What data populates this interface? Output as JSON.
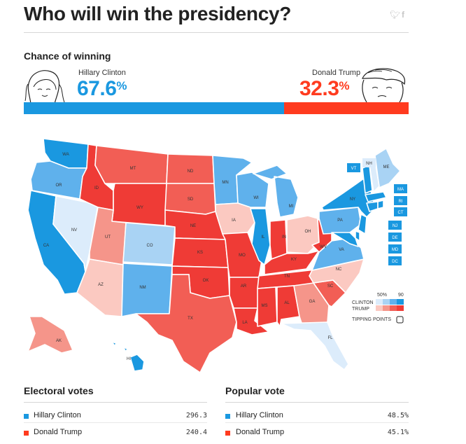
{
  "title": "Who will win the presidency?",
  "social_icons": [
    "twitter-icon",
    "facebook-icon"
  ],
  "chance": {
    "label": "Chance of winning",
    "clinton": {
      "name": "Hillary Clinton",
      "value": "67.6",
      "sign": "%",
      "color": "#1a98e0",
      "share": 0.676
    },
    "trump": {
      "name": "Donald Trump",
      "value": "32.3",
      "sign": "%",
      "color": "#ff3b1f",
      "share": 0.323
    }
  },
  "colors": {
    "clinton_strong": "#1a98e0",
    "clinton_likely": "#5fb1ec",
    "clinton_lean": "#a9d3f4",
    "clinton_tilt": "#dcecfb",
    "trump_strong": "#ef3b36",
    "trump_likely": "#f25e55",
    "trump_lean": "#f5958a",
    "trump_tilt": "#fbc9c1"
  },
  "map": {
    "states": [
      {
        "abbr": "WA",
        "rating": "clinton_strong"
      },
      {
        "abbr": "OR",
        "rating": "clinton_likely"
      },
      {
        "abbr": "CA",
        "rating": "clinton_strong"
      },
      {
        "abbr": "NV",
        "rating": "clinton_tilt"
      },
      {
        "abbr": "ID",
        "rating": "trump_strong"
      },
      {
        "abbr": "MT",
        "rating": "trump_likely"
      },
      {
        "abbr": "WY",
        "rating": "trump_strong"
      },
      {
        "abbr": "UT",
        "rating": "trump_lean"
      },
      {
        "abbr": "AZ",
        "rating": "trump_tilt"
      },
      {
        "abbr": "CO",
        "rating": "clinton_lean"
      },
      {
        "abbr": "NM",
        "rating": "clinton_likely"
      },
      {
        "abbr": "ND",
        "rating": "trump_likely"
      },
      {
        "abbr": "SD",
        "rating": "trump_likely"
      },
      {
        "abbr": "NE",
        "rating": "trump_strong"
      },
      {
        "abbr": "KS",
        "rating": "trump_strong"
      },
      {
        "abbr": "OK",
        "rating": "trump_strong"
      },
      {
        "abbr": "TX",
        "rating": "trump_likely"
      },
      {
        "abbr": "MN",
        "rating": "clinton_likely"
      },
      {
        "abbr": "IA",
        "rating": "trump_tilt"
      },
      {
        "abbr": "MO",
        "rating": "trump_strong"
      },
      {
        "abbr": "AR",
        "rating": "trump_strong"
      },
      {
        "abbr": "LA",
        "rating": "trump_strong"
      },
      {
        "abbr": "WI",
        "rating": "clinton_likely"
      },
      {
        "abbr": "IL",
        "rating": "clinton_strong"
      },
      {
        "abbr": "MI",
        "rating": "clinton_likely"
      },
      {
        "abbr": "IN",
        "rating": "trump_strong"
      },
      {
        "abbr": "OH",
        "rating": "trump_tilt"
      },
      {
        "abbr": "KY",
        "rating": "trump_strong"
      },
      {
        "abbr": "TN",
        "rating": "trump_strong"
      },
      {
        "abbr": "MS",
        "rating": "trump_strong"
      },
      {
        "abbr": "AL",
        "rating": "trump_strong"
      },
      {
        "abbr": "GA",
        "rating": "trump_lean"
      },
      {
        "abbr": "FL",
        "rating": "clinton_tilt"
      },
      {
        "abbr": "SC",
        "rating": "trump_likely"
      },
      {
        "abbr": "NC",
        "rating": "trump_tilt"
      },
      {
        "abbr": "VA",
        "rating": "clinton_likely"
      },
      {
        "abbr": "WV",
        "rating": "trump_strong"
      },
      {
        "abbr": "PA",
        "rating": "clinton_likely"
      },
      {
        "abbr": "NY",
        "rating": "clinton_strong"
      },
      {
        "abbr": "ME",
        "rating": "clinton_lean"
      },
      {
        "abbr": "AK",
        "rating": "trump_lean"
      },
      {
        "abbr": "HI",
        "rating": "clinton_strong"
      }
    ],
    "small_states": [
      {
        "abbr": "VT",
        "rating": "clinton_strong"
      },
      {
        "abbr": "NH",
        "rating": "clinton_tilt"
      },
      {
        "abbr": "MA",
        "rating": "clinton_strong"
      },
      {
        "abbr": "RI",
        "rating": "clinton_strong"
      },
      {
        "abbr": "CT",
        "rating": "clinton_strong"
      },
      {
        "abbr": "NJ",
        "rating": "clinton_strong"
      },
      {
        "abbr": "DE",
        "rating": "clinton_strong"
      },
      {
        "abbr": "MD",
        "rating": "clinton_strong"
      },
      {
        "abbr": "DC",
        "rating": "clinton_strong"
      }
    ],
    "legend": {
      "scale_low": "50%",
      "scale_high": "90",
      "clinton_label": "CLINTON",
      "trump_label": "TRUMP",
      "tipping_label": "TIPPING POINTS"
    }
  },
  "electoral": {
    "title": "Electoral votes",
    "rows": [
      {
        "name": "Hillary Clinton",
        "value": "296.3",
        "color": "#1a98e0"
      },
      {
        "name": "Donald Trump",
        "value": "240.4",
        "color": "#ff3b1f"
      }
    ]
  },
  "popular": {
    "title": "Popular vote",
    "rows": [
      {
        "name": "Hillary Clinton",
        "value": "48.5%",
        "color": "#1a98e0"
      },
      {
        "name": "Donald Trump",
        "value": "45.1%",
        "color": "#ff3b1f"
      }
    ]
  }
}
